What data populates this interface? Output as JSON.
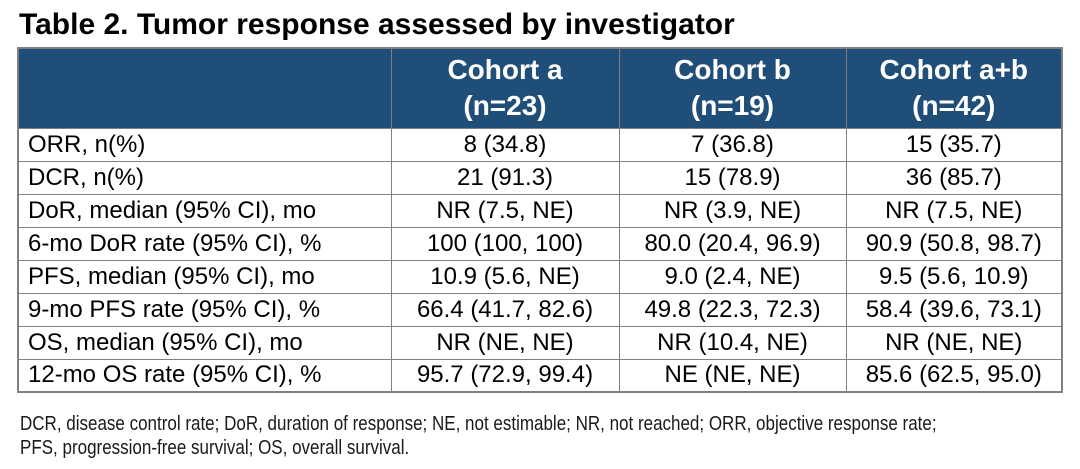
{
  "title": "Table 2. Tumor response assessed by investigator",
  "colors": {
    "header_bg": "#1f4e78",
    "header_text": "#ffffff",
    "border": "#7f7f7f",
    "body_text": "#000000"
  },
  "table": {
    "header": {
      "corner": "",
      "columns": [
        {
          "name": "Cohort a",
          "n": "(n=23)"
        },
        {
          "name": "Cohort b",
          "n": "(n=19)"
        },
        {
          "name": "Cohort a+b",
          "n": "(n=42)"
        }
      ]
    },
    "rows": [
      {
        "label": "ORR, n(%)",
        "cohort_a": "8 (34.8)",
        "cohort_b": "7 (36.8)",
        "cohort_ab": "15 (35.7)"
      },
      {
        "label": "DCR, n(%)",
        "cohort_a": "21 (91.3)",
        "cohort_b": "15 (78.9)",
        "cohort_ab": "36 (85.7)"
      },
      {
        "label": "DoR, median (95% CI), mo",
        "cohort_a": "NR (7.5, NE)",
        "cohort_b": "NR (3.9, NE)",
        "cohort_ab": "NR (7.5, NE)"
      },
      {
        "label": "6-mo DoR rate (95% CI), %",
        "cohort_a": "100 (100, 100)",
        "cohort_b": "80.0 (20.4, 96.9)",
        "cohort_ab": "90.9 (50.8, 98.7)"
      },
      {
        "label": "PFS, median (95% CI), mo",
        "cohort_a": "10.9 (5.6, NE)",
        "cohort_b": "9.0 (2.4, NE)",
        "cohort_ab": "9.5 (5.6, 10.9)"
      },
      {
        "label": "9-mo PFS rate (95% CI), %",
        "cohort_a": "66.4 (41.7, 82.6)",
        "cohort_b": "49.8 (22.3, 72.3)",
        "cohort_ab": "58.4 (39.6, 73.1)"
      },
      {
        "label": "OS, median (95% CI), mo",
        "cohort_a": "NR (NE, NE)",
        "cohort_b": "NR (10.4, NE)",
        "cohort_ab": "NR (NE, NE)"
      },
      {
        "label": "12-mo OS rate (95% CI), %",
        "cohort_a": "95.7 (72.9, 99.4)",
        "cohort_b": "NE (NE, NE)",
        "cohort_ab": "85.6 (62.5, 95.0)"
      }
    ]
  },
  "footnote": {
    "line1": "DCR, disease control rate; DoR, duration of response; NE, not estimable; NR, not reached; ORR, objective response rate;",
    "line2": "PFS, progression-free survival; OS, overall survival."
  }
}
